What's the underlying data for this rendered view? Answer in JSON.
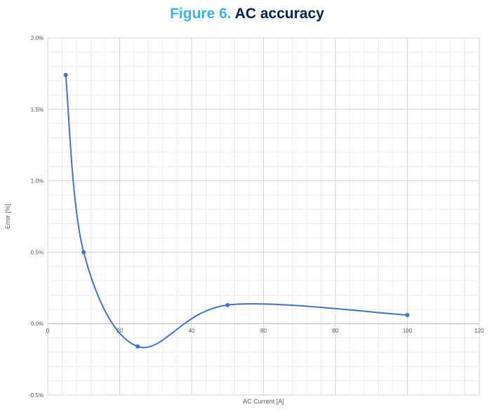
{
  "figure": {
    "number": "Figure 6.",
    "title": "AC accuracy"
  },
  "chart_data": {
    "type": "scatter",
    "smooth": true,
    "xlabel": "AC Current [A]",
    "ylabel": "Error [%]",
    "xlim": [
      0,
      120
    ],
    "ylim": [
      -0.5,
      2.0
    ],
    "xticks": [
      0,
      20,
      40,
      60,
      80,
      100,
      120
    ],
    "yticks": [
      -0.5,
      0.0,
      0.5,
      1.0,
      1.5,
      2.0
    ],
    "ytick_labels": [
      "-0.5%",
      "0.0%",
      "0.5%",
      "1.0%",
      "1.5%",
      "2.0%"
    ],
    "grid": true,
    "minor_grid": true,
    "legend": "none",
    "series": [
      {
        "color": "#4472c4",
        "x": [
          5,
          10,
          25,
          50,
          100
        ],
        "y": [
          1.74,
          0.5,
          -0.16,
          0.13,
          0.06
        ]
      }
    ]
  }
}
